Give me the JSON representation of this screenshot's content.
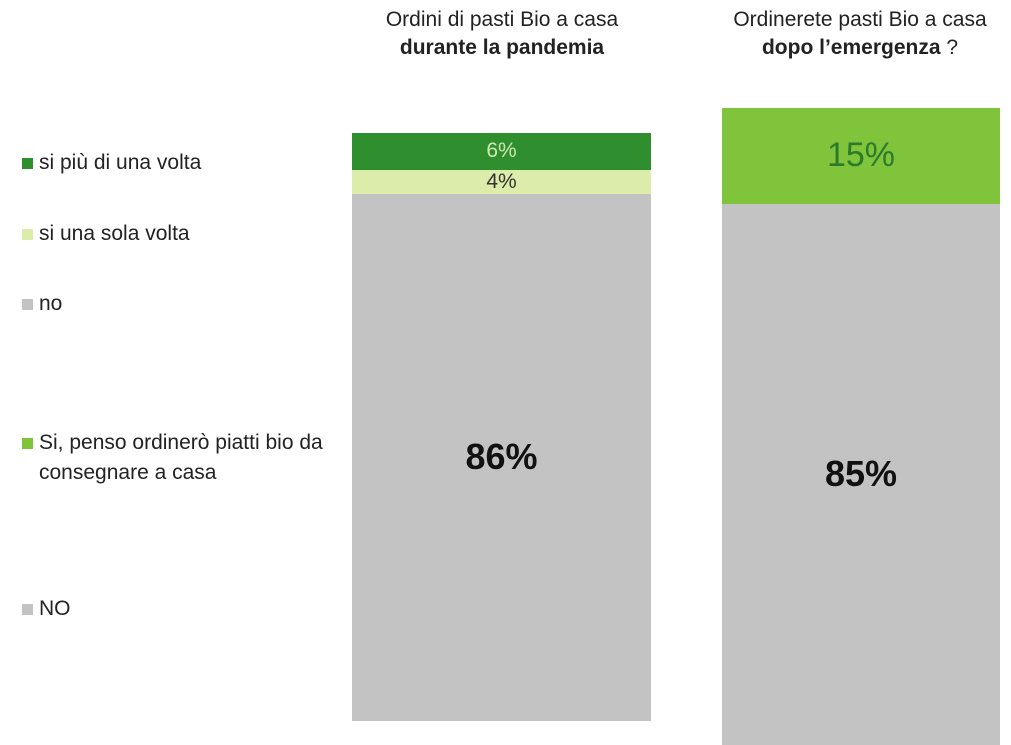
{
  "chart_data": [
    {
      "type": "stacked_bar",
      "title": [
        {
          "text": "Ordini di pasti Bio a casa",
          "bold": false
        },
        {
          "text": "durante la pandemia",
          "bold": true
        }
      ],
      "ylim": [
        0,
        100
      ],
      "series": [
        {
          "name": "si più di una volta",
          "color": "#2f8f2f",
          "values": [
            6
          ],
          "value_labels": [
            "6%"
          ]
        },
        {
          "name": "si una sola volta",
          "color": "#dcecaa",
          "values": [
            4
          ],
          "value_labels": [
            "4%"
          ]
        },
        {
          "name": "no",
          "color": "#c3c3c3",
          "values": [
            86
          ],
          "value_labels": [
            "86%"
          ]
        }
      ]
    },
    {
      "type": "stacked_bar",
      "title": [
        {
          "text": "Ordinerete pasti Bio a casa",
          "bold": false
        },
        {
          "text": "dopo l’emergenza",
          "bold": true
        },
        {
          "text": "?",
          "bold": false
        }
      ],
      "ylim": [
        0,
        100
      ],
      "series": [
        {
          "name": "Si, penso ordinerò piatti bio da consegnare a casa",
          "color": "#80c43c",
          "values": [
            15
          ],
          "value_labels": [
            "15%"
          ]
        },
        {
          "name": "NO",
          "color": "#c3c3c3",
          "values": [
            85
          ],
          "value_labels": [
            "85%"
          ]
        }
      ]
    }
  ]
}
